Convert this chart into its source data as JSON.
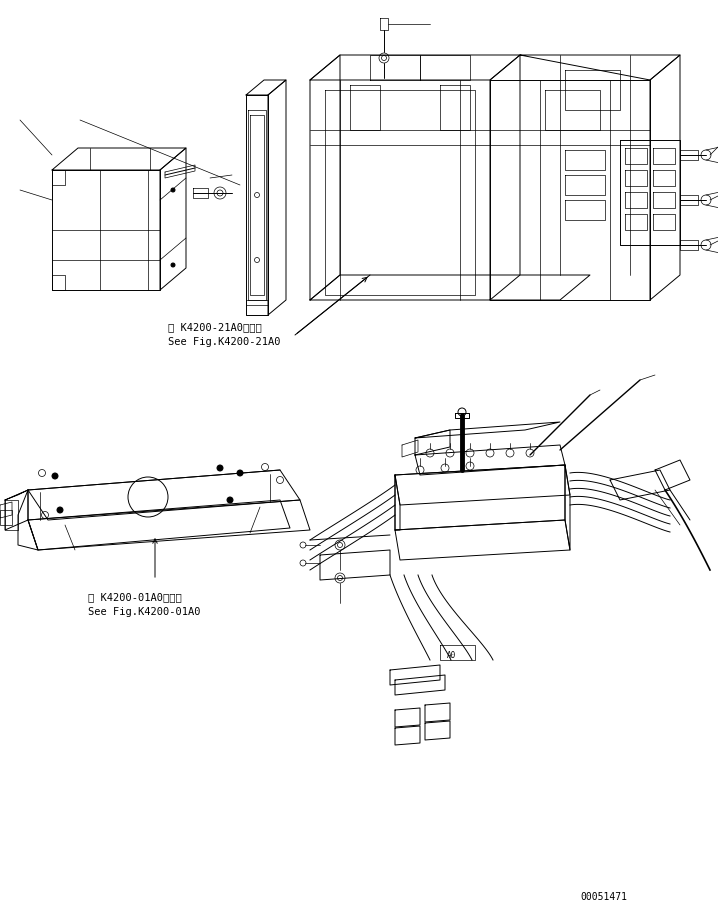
{
  "background_color": "#ffffff",
  "line_color": "#000000",
  "text_color": "#000000",
  "fig_width": 7.18,
  "fig_height": 9.14,
  "dpi": 100,
  "ref_text_1_line1": "第 K4200-21A0図参照",
  "ref_text_1_line2": "See Fig.K4200-21A0",
  "ref_text_2_line1": "第 K4200-01A0図参照",
  "ref_text_2_line2": "See Fig.K4200-01A0",
  "part_number": "00051471",
  "font_size_ref": 7.5,
  "font_size_part": 7
}
